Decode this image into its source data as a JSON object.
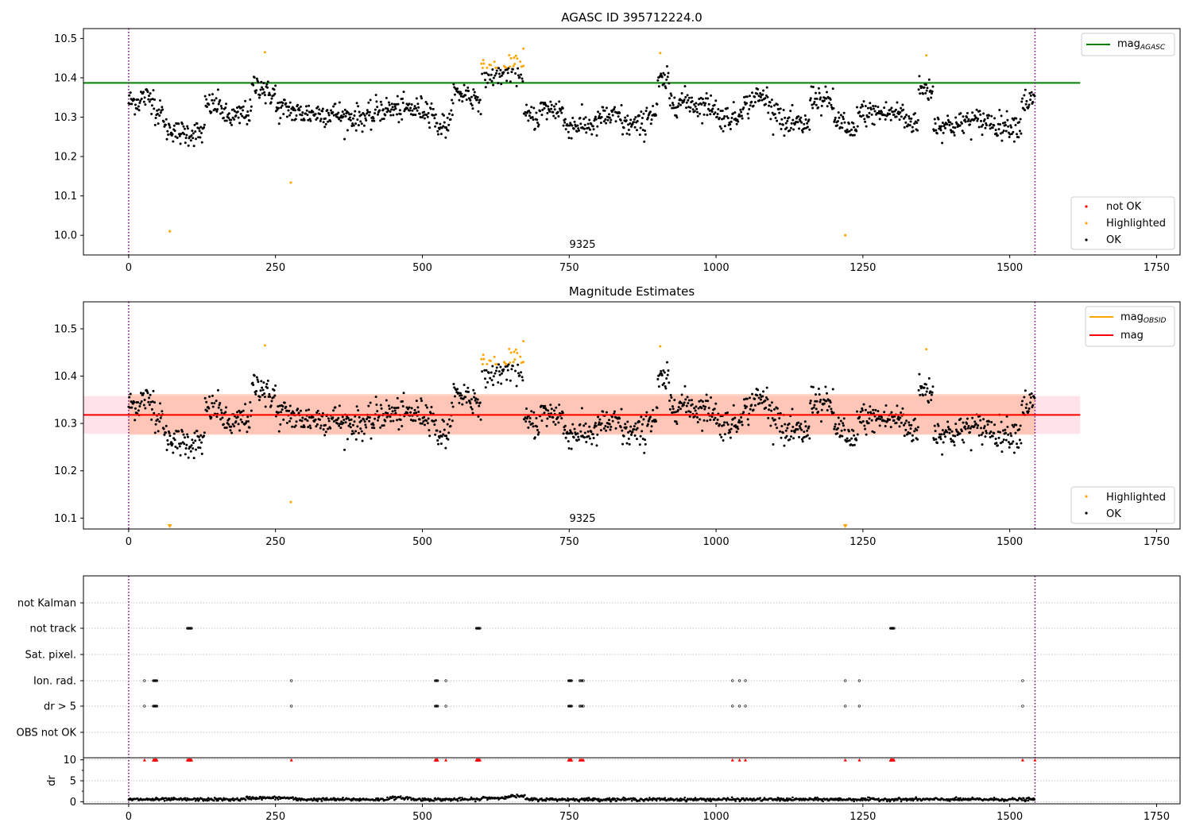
{
  "colors": {
    "ok": "#000000",
    "highlighted": "#ffa500",
    "not_ok": "#ff0000",
    "mag_agasc_line": "#008000",
    "mag_line": "#ff0000",
    "mag_obsid_line": "#ffa500",
    "band_outer": "#ffc0cb",
    "band_inner": "#ffa07a",
    "boundary": "#800080",
    "grid": "#b0b0b0"
  },
  "chart_data": [
    {
      "type": "scatter",
      "title": "AGASC ID 395712224.0",
      "xlabel": "",
      "ylabel": "",
      "xlim": [
        -77,
        1790
      ],
      "ylim": [
        9.95,
        10.525
      ],
      "xticks": [
        0,
        250,
        500,
        750,
        1000,
        1250,
        1500,
        1750
      ],
      "yticks": [
        10.0,
        10.1,
        10.2,
        10.3,
        10.4,
        10.5
      ],
      "ytick_labels": [
        "10.0",
        "10.1",
        "10.2",
        "10.3",
        "10.4",
        "10.5"
      ],
      "obsid_boundaries": [
        0,
        1543
      ],
      "obsid_label": "9325",
      "obsid_label_x": 770,
      "reference_line": {
        "name_main": "mag",
        "name_sub": "AGASC",
        "y": 10.387,
        "x_range": [
          -77,
          1620
        ]
      },
      "legend_top": [
        {
          "label_main": "mag",
          "label_sub": "AGASC"
        }
      ],
      "legend_bottom": [
        "not OK",
        "Highlighted",
        "OK"
      ],
      "outliers_highlighted": [
        {
          "x": 70,
          "y": 10.01
        },
        {
          "x": 276,
          "y": 10.134
        },
        {
          "x": 1220,
          "y": 10.0
        }
      ]
    },
    {
      "type": "scatter",
      "title": "Magnitude Estimates",
      "xlabel": "",
      "ylabel": "",
      "xlim": [
        -77,
        1790
      ],
      "ylim": [
        10.077,
        10.557
      ],
      "xticks": [
        0,
        250,
        500,
        750,
        1000,
        1250,
        1500,
        1750
      ],
      "yticks": [
        10.1,
        10.2,
        10.3,
        10.4,
        10.5
      ],
      "ytick_labels": [
        "10.1",
        "10.2",
        "10.3",
        "10.4",
        "10.5"
      ],
      "obsid_boundaries": [
        0,
        1543
      ],
      "obsid_label": "9325",
      "obsid_label_x": 770,
      "mag_line": {
        "y": 10.318,
        "x_range": [
          -77,
          1620
        ]
      },
      "mag_obsid_line": {
        "y": 10.318,
        "x_range": [
          0,
          1543
        ]
      },
      "band_outer": {
        "y_range": [
          10.278,
          10.358
        ],
        "x_range": [
          -77,
          1620
        ]
      },
      "band_inner": {
        "y_range": [
          10.276,
          10.362
        ],
        "x_range": [
          0,
          1543
        ]
      },
      "legend_top": [
        {
          "label_main": "mag",
          "label_sub": "OBSID"
        },
        {
          "label_main": "mag",
          "label_sub": ""
        }
      ],
      "legend_bottom": [
        "Highlighted",
        "OK"
      ],
      "outliers_highlighted": [
        {
          "x": 276,
          "y": 10.134
        }
      ],
      "clipped_markers": [
        {
          "x": 70,
          "y": 10.077
        },
        {
          "x": 1220,
          "y": 10.077
        }
      ]
    },
    {
      "type": "scatter",
      "title": "",
      "xlabel": "",
      "flag_categories": [
        "not Kalman",
        "not track",
        "Sat. pixel.",
        "Ion. rad.",
        "dr > 5",
        "OBS not OK"
      ],
      "xlim": [
        -77,
        1790
      ],
      "xticks": [
        0,
        250,
        500,
        750,
        1000,
        1250,
        1500,
        1750
      ],
      "obsid_boundaries": [
        0,
        1543
      ],
      "flags": {
        "not Kalman": [],
        "not track": [
          100,
          101,
          102,
          103,
          104,
          105,
          106,
          107,
          592,
          593,
          594,
          595,
          596,
          597,
          598,
          1297,
          1298,
          1299,
          1300,
          1301,
          1302,
          1303
        ],
        "Sat. pixel.": [],
        "Ion. rad.": [
          27,
          42,
          43,
          44,
          45,
          46,
          47,
          48,
          277,
          522,
          523,
          524,
          525,
          526,
          540,
          749,
          750,
          751,
          752,
          753,
          754,
          768,
          770,
          772,
          774,
          1028,
          1040,
          1050,
          1220,
          1244,
          1522
        ],
        "dr > 5": [
          27,
          42,
          43,
          44,
          45,
          46,
          47,
          48,
          277,
          522,
          523,
          524,
          525,
          526,
          540,
          749,
          750,
          751,
          752,
          753,
          754,
          768,
          770,
          772,
          774,
          1028,
          1040,
          1050,
          1220,
          1244,
          1522
        ],
        "OBS not OK": []
      },
      "dr_panel": {
        "ylabel": "dr",
        "ylim": [
          -0.5,
          10.5
        ],
        "yticks": [
          0,
          5,
          10
        ],
        "ytick_labels": [
          "0",
          "5",
          "10"
        ],
        "clipped_x": [
          27,
          42,
          43,
          44,
          45,
          46,
          47,
          48,
          100,
          101,
          102,
          103,
          104,
          105,
          106,
          107,
          277,
          522,
          523,
          524,
          525,
          526,
          540,
          592,
          593,
          594,
          595,
          596,
          597,
          598,
          749,
          750,
          751,
          752,
          753,
          754,
          768,
          770,
          772,
          774,
          1028,
          1040,
          1050,
          1220,
          1244,
          1297,
          1298,
          1299,
          1300,
          1301,
          1302,
          1303,
          1522,
          1543
        ]
      }
    }
  ]
}
